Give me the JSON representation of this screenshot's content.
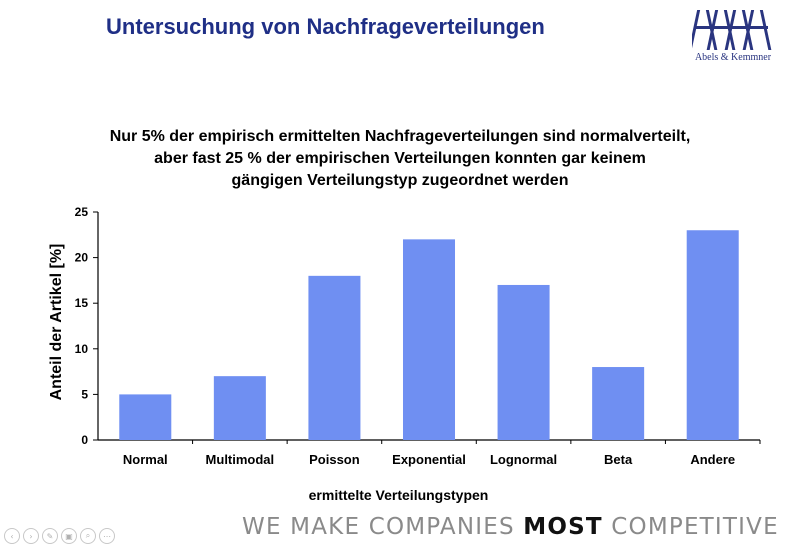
{
  "slide": {
    "title": "Untersuchung von Nachfrageverteilungen",
    "logo_text": "Abels & Kemmner",
    "headline": [
      "Nur 5% der empirisch ermittelten Nachfrageverteilungen sind normalverteilt,",
      "aber fast 25 % der empirischen Verteilungen konnten gar keinem",
      "gängigen Verteilungstyp zugeordnet werden"
    ],
    "tagline_pre": "WE MAKE COMPANIES ",
    "tagline_bold": "MOST",
    "tagline_post": " COMPETITIVE"
  },
  "player_icons": [
    "prev-icon",
    "next-icon",
    "pen-icon",
    "slides-icon",
    "zoom-icon",
    "more-icon"
  ],
  "chart_data": {
    "type": "bar",
    "categories": [
      "Normal",
      "Multimodal",
      "Poisson",
      "Exponential",
      "Lognormal",
      "Beta",
      "Andere"
    ],
    "values": [
      5,
      7,
      18,
      22,
      17,
      8,
      23
    ],
    "xlabel": "ermittelte Verteilungstypen",
    "ylabel": "Anteil der Artikel [%]",
    "ylim": [
      0,
      25
    ],
    "yticks": [
      0,
      5,
      10,
      15,
      20,
      25
    ],
    "grid": false,
    "bar_color": "#6f8ff2"
  }
}
